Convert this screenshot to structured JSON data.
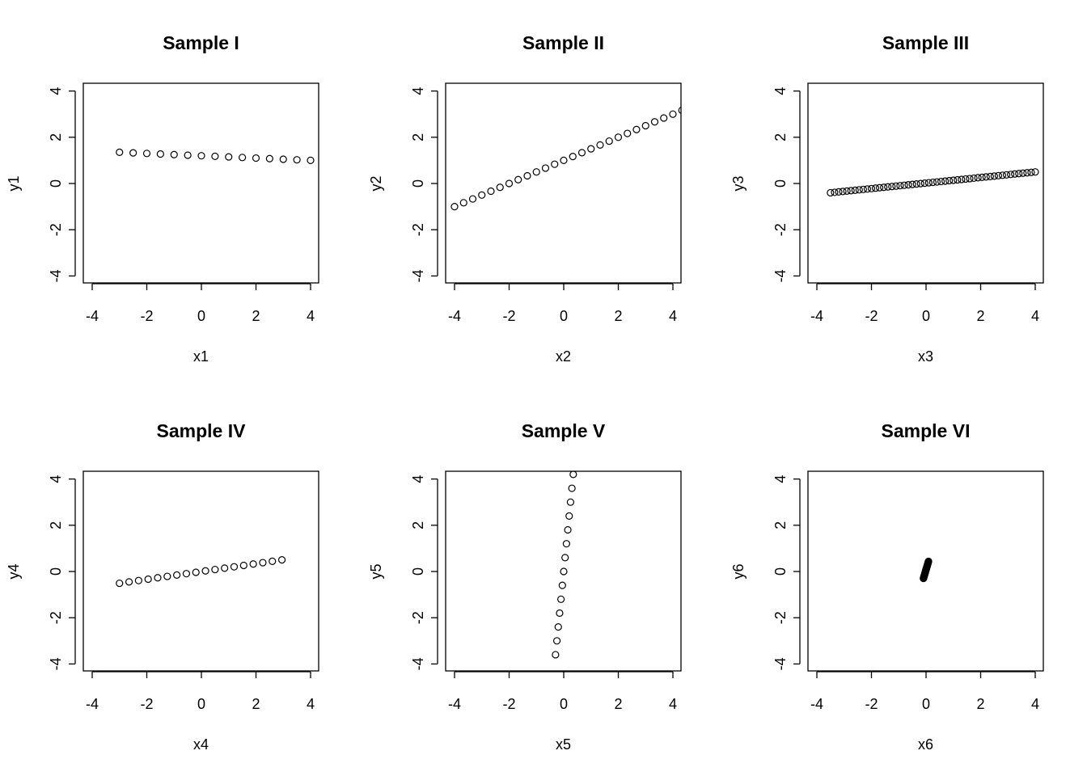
{
  "chart_data": [
    {
      "type": "scatter",
      "title": "Sample I",
      "xlabel": "x1",
      "ylabel": "y1",
      "xlim": [
        -4.3,
        4.3
      ],
      "ylim": [
        -4.3,
        4.3
      ],
      "xticks": [
        -4,
        -2,
        0,
        2,
        4
      ],
      "yticks": [
        -4,
        -2,
        0,
        2,
        4
      ],
      "grid": false,
      "points": {
        "gen": "linear",
        "x_start": -3,
        "x_step": 0.5,
        "n": 15,
        "intercept": 1.2,
        "slope": -0.05
      }
    },
    {
      "type": "scatter",
      "title": "Sample II",
      "xlabel": "x2",
      "ylabel": "y2",
      "xlim": [
        -4.3,
        4.3
      ],
      "ylim": [
        -4.3,
        4.3
      ],
      "xticks": [
        -4,
        -2,
        0,
        2,
        4
      ],
      "yticks": [
        -4,
        -2,
        0,
        2,
        4
      ],
      "grid": false,
      "points": {
        "gen": "linear",
        "x_start": -4,
        "x_step": 0.3333,
        "n": 26,
        "intercept": 1.0,
        "slope": 0.5
      }
    },
    {
      "type": "scatter",
      "title": "Sample III",
      "xlabel": "x3",
      "ylabel": "y3",
      "xlim": [
        -4.3,
        4.3
      ],
      "ylim": [
        -4.3,
        4.3
      ],
      "xticks": [
        -4,
        -2,
        0,
        2,
        4
      ],
      "yticks": [
        -4,
        -2,
        0,
        2,
        4
      ],
      "grid": false,
      "points": {
        "gen": "linear",
        "x_start": -3.5,
        "x_step": 0.15,
        "n": 51,
        "intercept": 0.02,
        "slope": 0.12
      }
    },
    {
      "type": "scatter",
      "title": "Sample IV",
      "xlabel": "x4",
      "ylabel": "y4",
      "xlim": [
        -4.3,
        4.3
      ],
      "ylim": [
        -4.3,
        4.3
      ],
      "xticks": [
        -4,
        -2,
        0,
        2,
        4
      ],
      "yticks": [
        -4,
        -2,
        0,
        2,
        4
      ],
      "grid": false,
      "points": {
        "gen": "linear",
        "x_start": -3,
        "x_step": 0.35,
        "n": 18,
        "intercept": 0.0,
        "slope": 0.17
      }
    },
    {
      "type": "scatter",
      "title": "Sample V",
      "xlabel": "x5",
      "ylabel": "y5",
      "xlim": [
        -4.3,
        4.3
      ],
      "ylim": [
        -4.3,
        4.3
      ],
      "xticks": [
        -4,
        -2,
        0,
        2,
        4
      ],
      "yticks": [
        -4,
        -2,
        0,
        2,
        4
      ],
      "grid": false,
      "points": {
        "gen": "linear_y",
        "y_start": -3.6,
        "y_step": 0.6,
        "n": 14,
        "intercept": 0.0,
        "slope": 0.0833
      }
    },
    {
      "type": "scatter",
      "title": "Sample VI",
      "xlabel": "x6",
      "ylabel": "y6",
      "xlim": [
        -4.3,
        4.3
      ],
      "ylim": [
        -4.3,
        4.3
      ],
      "xticks": [
        -4,
        -2,
        0,
        2,
        4
      ],
      "yticks": [
        -4,
        -2,
        0,
        2,
        4
      ],
      "grid": false,
      "points": {
        "gen": "linear_y",
        "y_start": -0.3,
        "y_step": 0.02,
        "n": 38,
        "intercept": -0.02,
        "slope": 0.25
      }
    }
  ]
}
